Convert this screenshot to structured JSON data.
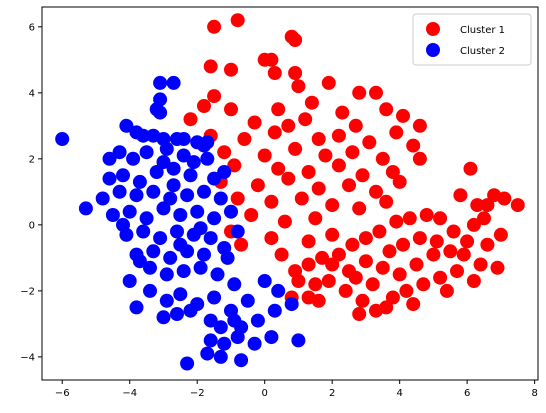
{
  "chart_data": {
    "type": "scatter",
    "title": "",
    "xlabel": "",
    "ylabel": "",
    "xlim": [
      -6.6,
      8.1
    ],
    "ylim": [
      -4.7,
      6.6
    ],
    "xticks": [
      -6,
      -4,
      -2,
      0,
      2,
      4,
      6,
      8
    ],
    "yticks": [
      -4,
      -2,
      0,
      2,
      4,
      6
    ],
    "grid": false,
    "legend_position": "top-right",
    "series": [
      {
        "name": "Cluster 1",
        "color": "#ff0000",
        "points": [
          [
            -1.5,
            6.0
          ],
          [
            -0.8,
            6.2
          ],
          [
            0.8,
            5.7
          ],
          [
            0.9,
            5.6
          ],
          [
            0.0,
            5.0
          ],
          [
            0.2,
            5.0
          ],
          [
            -1.6,
            4.8
          ],
          [
            -1.0,
            4.7
          ],
          [
            0.9,
            4.6
          ],
          [
            0.3,
            4.6
          ],
          [
            1.9,
            4.3
          ],
          [
            2.8,
            4.0
          ],
          [
            3.3,
            4.0
          ],
          [
            1.0,
            4.2
          ],
          [
            -1.5,
            3.9
          ],
          [
            -1.8,
            3.6
          ],
          [
            -1.0,
            3.5
          ],
          [
            0.4,
            3.5
          ],
          [
            1.4,
            3.7
          ],
          [
            2.3,
            3.4
          ],
          [
            3.6,
            3.5
          ],
          [
            4.1,
            3.3
          ],
          [
            -2.2,
            3.2
          ],
          [
            -0.3,
            3.1
          ],
          [
            0.7,
            3.0
          ],
          [
            1.2,
            3.2
          ],
          [
            2.7,
            3.0
          ],
          [
            3.9,
            2.8
          ],
          [
            4.6,
            3.0
          ],
          [
            -1.6,
            2.7
          ],
          [
            -0.6,
            2.6
          ],
          [
            0.3,
            2.8
          ],
          [
            1.6,
            2.6
          ],
          [
            2.2,
            2.7
          ],
          [
            3.1,
            2.5
          ],
          [
            4.4,
            2.4
          ],
          [
            -1.2,
            2.2
          ],
          [
            0.0,
            2.1
          ],
          [
            0.9,
            2.3
          ],
          [
            1.8,
            2.1
          ],
          [
            2.6,
            2.2
          ],
          [
            3.5,
            2.0
          ],
          [
            4.6,
            2.0
          ],
          [
            -0.9,
            1.8
          ],
          [
            0.4,
            1.7
          ],
          [
            1.3,
            1.6
          ],
          [
            2.2,
            1.8
          ],
          [
            2.9,
            1.5
          ],
          [
            3.8,
            1.6
          ],
          [
            -1.3,
            1.3
          ],
          [
            -0.2,
            1.2
          ],
          [
            0.7,
            1.4
          ],
          [
            1.6,
            1.1
          ],
          [
            2.5,
            1.2
          ],
          [
            3.3,
            1.0
          ],
          [
            4.0,
            1.3
          ],
          [
            -0.8,
            0.8
          ],
          [
            0.2,
            0.7
          ],
          [
            1.1,
            0.8
          ],
          [
            2.0,
            0.6
          ],
          [
            2.8,
            0.5
          ],
          [
            3.6,
            0.7
          ],
          [
            -0.4,
            0.3
          ],
          [
            0.6,
            0.1
          ],
          [
            1.5,
            0.2
          ],
          [
            -1.0,
            -0.2
          ],
          [
            0.2,
            -0.4
          ],
          [
            1.3,
            -0.5
          ],
          [
            2.0,
            -0.3
          ],
          [
            -0.7,
            -0.6
          ],
          [
            0.5,
            -0.9
          ],
          [
            5.8,
            0.9
          ],
          [
            6.3,
            0.6
          ],
          [
            6.6,
            0.6
          ],
          [
            6.8,
            0.9
          ],
          [
            7.1,
            0.8
          ],
          [
            7.5,
            0.6
          ],
          [
            6.2,
            0.0
          ],
          [
            7.0,
            -0.3
          ],
          [
            6.6,
            -0.6
          ],
          [
            6.9,
            -1.3
          ],
          [
            6.4,
            -1.2
          ],
          [
            6.1,
            1.7
          ],
          [
            5.6,
            -0.2
          ],
          [
            5.2,
            0.2
          ],
          [
            4.8,
            0.3
          ],
          [
            4.3,
            0.2
          ],
          [
            3.9,
            0.1
          ],
          [
            3.4,
            -0.2
          ],
          [
            3.0,
            -0.4
          ],
          [
            2.6,
            -0.6
          ],
          [
            2.2,
            -0.9
          ],
          [
            1.7,
            -1.0
          ],
          [
            1.3,
            -1.2
          ],
          [
            0.9,
            -1.4
          ],
          [
            0.8,
            -2.2
          ],
          [
            1.3,
            -2.2
          ],
          [
            1.9,
            -1.7
          ],
          [
            2.4,
            -2.0
          ],
          [
            2.9,
            -2.3
          ],
          [
            3.3,
            -2.6
          ],
          [
            3.8,
            -2.2
          ],
          [
            4.2,
            -2.0
          ],
          [
            4.7,
            -1.8
          ],
          [
            5.2,
            -1.6
          ],
          [
            5.7,
            -1.4
          ],
          [
            6.2,
            -1.7
          ],
          [
            5.5,
            -0.8
          ],
          [
            5.0,
            -0.9
          ],
          [
            4.5,
            -1.2
          ],
          [
            4.0,
            -1.5
          ],
          [
            3.5,
            -1.3
          ],
          [
            3.0,
            -1.1
          ],
          [
            2.5,
            -1.4
          ],
          [
            2.0,
            -1.2
          ],
          [
            1.5,
            -1.8
          ],
          [
            1.0,
            -1.7
          ],
          [
            4.1,
            -0.6
          ],
          [
            4.6,
            -0.4
          ],
          [
            5.1,
            -0.5
          ],
          [
            5.9,
            -0.9
          ],
          [
            3.7,
            -0.8
          ],
          [
            3.2,
            -1.8
          ],
          [
            2.7,
            -1.6
          ],
          [
            4.4,
            -2.4
          ],
          [
            3.6,
            -2.5
          ],
          [
            5.4,
            -2.0
          ],
          [
            6.0,
            -0.5
          ],
          [
            6.5,
            0.2
          ],
          [
            2.8,
            -2.7
          ],
          [
            1.6,
            -2.3
          ]
        ]
      },
      {
        "name": "Cluster 2",
        "color": "#0000ff",
        "points": [
          [
            -6.0,
            2.6
          ],
          [
            -5.3,
            0.5
          ],
          [
            -3.1,
            4.3
          ],
          [
            -2.7,
            4.3
          ],
          [
            -3.1,
            3.8
          ],
          [
            -3.2,
            3.5
          ],
          [
            -3.1,
            3.4
          ],
          [
            -4.1,
            3.0
          ],
          [
            -3.8,
            2.8
          ],
          [
            -3.3,
            2.7
          ],
          [
            -3.0,
            2.6
          ],
          [
            -2.4,
            2.6
          ],
          [
            -2.0,
            2.5
          ],
          [
            -1.8,
            2.4
          ],
          [
            -4.6,
            2.0
          ],
          [
            -4.3,
            2.2
          ],
          [
            -3.9,
            2.0
          ],
          [
            -3.5,
            2.2
          ],
          [
            -2.9,
            2.3
          ],
          [
            -2.4,
            2.1
          ],
          [
            -1.7,
            2.0
          ],
          [
            -4.6,
            1.4
          ],
          [
            -4.2,
            1.5
          ],
          [
            -3.7,
            1.3
          ],
          [
            -3.2,
            1.6
          ],
          [
            -2.7,
            1.7
          ],
          [
            -2.2,
            1.5
          ],
          [
            -1.5,
            1.4
          ],
          [
            -4.8,
            0.8
          ],
          [
            -4.3,
            1.0
          ],
          [
            -3.8,
            0.9
          ],
          [
            -3.3,
            1.0
          ],
          [
            -2.8,
            0.8
          ],
          [
            -2.3,
            0.9
          ],
          [
            -1.8,
            1.0
          ],
          [
            -1.3,
            0.8
          ],
          [
            -4.5,
            0.3
          ],
          [
            -4.0,
            0.4
          ],
          [
            -3.5,
            0.2
          ],
          [
            -3.0,
            0.5
          ],
          [
            -2.5,
            0.3
          ],
          [
            -2.0,
            0.4
          ],
          [
            -1.5,
            0.2
          ],
          [
            -4.1,
            -0.3
          ],
          [
            -3.6,
            -0.2
          ],
          [
            -3.1,
            -0.4
          ],
          [
            -2.6,
            -0.2
          ],
          [
            -2.1,
            -0.3
          ],
          [
            -1.6,
            -0.4
          ],
          [
            -3.8,
            -0.9
          ],
          [
            -3.3,
            -0.8
          ],
          [
            -2.8,
            -1.0
          ],
          [
            -2.3,
            -0.8
          ],
          [
            -1.8,
            -0.9
          ],
          [
            -1.2,
            -0.7
          ],
          [
            -3.4,
            -1.3
          ],
          [
            -2.9,
            -1.5
          ],
          [
            -2.4,
            -1.4
          ],
          [
            -1.9,
            -1.3
          ],
          [
            -1.4,
            -1.5
          ],
          [
            -4.0,
            -1.7
          ],
          [
            -3.8,
            -2.5
          ],
          [
            -3.4,
            -2.0
          ],
          [
            -2.9,
            -2.3
          ],
          [
            -2.5,
            -2.1
          ],
          [
            -2.0,
            -2.4
          ],
          [
            -1.5,
            -2.2
          ],
          [
            -0.9,
            -1.8
          ],
          [
            -3.0,
            -2.8
          ],
          [
            -2.6,
            -2.7
          ],
          [
            -2.2,
            -2.6
          ],
          [
            -1.6,
            -2.9
          ],
          [
            -1.0,
            -2.6
          ],
          [
            -0.5,
            -2.3
          ],
          [
            0.0,
            -1.7
          ],
          [
            0.4,
            -2.0
          ],
          [
            0.8,
            -2.4
          ],
          [
            0.3,
            -2.6
          ],
          [
            -0.2,
            -2.9
          ],
          [
            -0.7,
            -3.1
          ],
          [
            -1.3,
            -3.1
          ],
          [
            -1.6,
            -3.5
          ],
          [
            -1.2,
            -3.6
          ],
          [
            -0.8,
            -3.4
          ],
          [
            -0.3,
            -3.6
          ],
          [
            0.2,
            -3.4
          ],
          [
            -1.7,
            -3.9
          ],
          [
            -1.3,
            -4.0
          ],
          [
            -0.7,
            -4.1
          ],
          [
            -2.3,
            -4.2
          ],
          [
            1.0,
            -3.5
          ],
          [
            -0.9,
            -2.9
          ],
          [
            -1.1,
            -1.0
          ],
          [
            -0.8,
            -0.2
          ],
          [
            -1.0,
            0.4
          ],
          [
            -1.2,
            1.6
          ],
          [
            -1.7,
            2.5
          ],
          [
            -2.6,
            2.6
          ],
          [
            -3.6,
            2.7
          ],
          [
            -4.2,
            0.0
          ],
          [
            -3.7,
            -1.1
          ],
          [
            -2.7,
            1.2
          ],
          [
            -2.1,
            1.9
          ],
          [
            -3.0,
            1.9
          ],
          [
            -1.9,
            -0.1
          ],
          [
            -2.5,
            -0.6
          ]
        ]
      }
    ]
  }
}
